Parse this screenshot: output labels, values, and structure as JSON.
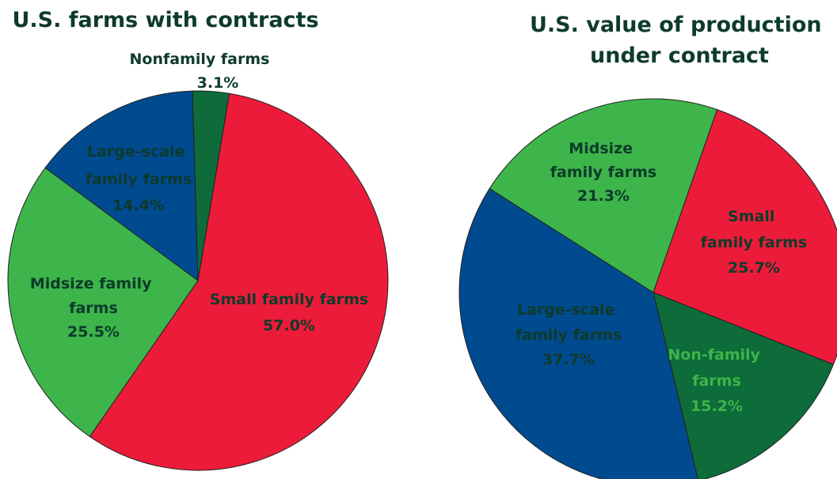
{
  "chart_data": [
    {
      "type": "pie",
      "title": "U.S. farms with contracts",
      "categories": [
        "Small family farms",
        "Midsize family farms",
        "Large-scale family farms",
        "Nonfamily farms"
      ],
      "values": [
        57.0,
        25.5,
        14.4,
        3.1
      ],
      "value_labels": [
        "57.0%",
        "25.5%",
        "14.4%",
        "3.1%"
      ],
      "colors": [
        "#ed1b3a",
        "#3db54a",
        "#004a8f",
        "#0e6b3a"
      ]
    },
    {
      "type": "pie",
      "title": "U.S. value of production under contract",
      "categories": [
        "Small family farms",
        "Non-family farms",
        "Large-scale family farms",
        "Midsize family farms"
      ],
      "values": [
        25.7,
        15.2,
        37.7,
        21.3
      ],
      "value_labels": [
        "25.7%",
        "15.2%",
        "37.7%",
        "21.3%"
      ],
      "colors": [
        "#ed1b3a",
        "#0e6b3a",
        "#004a8f",
        "#3db54a"
      ]
    }
  ]
}
